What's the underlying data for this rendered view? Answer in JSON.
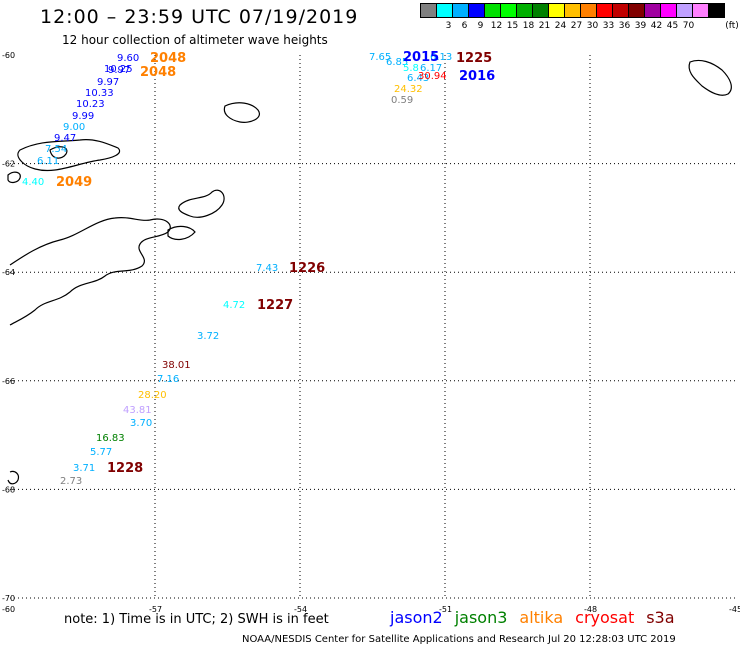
{
  "title": "12:00 – 23:59 UTC 07/19/2019",
  "subtitle": "12 hour collection of altimeter wave heights",
  "color_scale": {
    "unit": "(ft)",
    "colors": [
      "#808080",
      "#00ffff",
      "#00b0ff",
      "#0000ff",
      "#00e000",
      "#00ff00",
      "#00b000",
      "#008000",
      "#ffff00",
      "#ffbf00",
      "#ff8000",
      "#ff0000",
      "#c00000",
      "#800000",
      "#a000a0",
      "#ff00ff",
      "#c0a0ff",
      "#ff80ff",
      "#000000"
    ],
    "labels": [
      "3",
      "6",
      "9",
      "12",
      "15",
      "18",
      "21",
      "24",
      "27",
      "30",
      "33",
      "36",
      "39",
      "42",
      "45",
      "70"
    ]
  },
  "axis": {
    "lat_labels": [
      "-60",
      "-62",
      "-64",
      "-66",
      "-68",
      "-70"
    ],
    "lon_labels": [
      "-60",
      "-57",
      "-54",
      "-51",
      "-48",
      "-45"
    ]
  },
  "tracks": [
    {
      "color": "#00b0ff",
      "points": [
        {
          "lon": -55.5,
          "lat": -64.43,
          "v": "7.43",
          "c": "#00b0ff"
        },
        {
          "lon": -56.1,
          "lat": -65.09,
          "v": "4.72",
          "c": "#00ffff"
        },
        {
          "lon": -56.6,
          "lat": -65.71,
          "v": "3.72",
          "c": "#00b0ff"
        }
      ],
      "label": {
        "t": "1226",
        "c": "#800000"
      }
    },
    {
      "color": "#800000",
      "points": [],
      "label": {
        "t": "1227",
        "c": "#800000"
      }
    },
    {
      "color": "#000",
      "points": [
        {
          "lon": -56.8,
          "lat": -66.19,
          "v": "38.01",
          "c": "#800000"
        },
        {
          "lon": -57.0,
          "lat": -66.43,
          "v": "7.16",
          "c": "#00b0ff"
        },
        {
          "lon": -57.2,
          "lat": -66.72,
          "v": "28.20",
          "c": "#ffbf00"
        },
        {
          "lon": -57.4,
          "lat": -67.0,
          "v": "43.81",
          "c": "#c0a0ff"
        },
        {
          "lon": -57.6,
          "lat": -67.27,
          "v": "3.70",
          "c": "#00b0ff"
        },
        {
          "lon": -58.2,
          "lat": -67.55,
          "v": "16.83",
          "c": "#008000"
        },
        {
          "lon": -58.5,
          "lat": -67.82,
          "v": "5.77",
          "c": "#00b0ff"
        },
        {
          "lon": -58.9,
          "lat": -68.09,
          "v": "3.71",
          "c": "#00b0ff"
        },
        {
          "lon": -59.2,
          "lat": -68.23,
          "v": "2.73",
          "c": "#808080"
        }
      ],
      "label": {
        "t": "1228",
        "c": "#800000"
      }
    }
  ],
  "upper_track": [
    {
      "v": "9.60",
      "c": "#0000ff"
    },
    {
      "v": "10.25",
      "c": "#0000ff"
    },
    {
      "v": "9.97",
      "c": "#0000ff"
    },
    {
      "v": "9.97",
      "c": "#0000ff"
    },
    {
      "v": "10.33",
      "c": "#0000ff"
    },
    {
      "v": "10.23",
      "c": "#0000ff"
    },
    {
      "v": "9.99",
      "c": "#0000ff"
    },
    {
      "v": "9.00",
      "c": "#00b0ff"
    },
    {
      "v": "9.47",
      "c": "#0000ff"
    },
    {
      "v": "7.54",
      "c": "#00b0ff"
    },
    {
      "v": "6.11",
      "c": "#00b0ff"
    },
    {
      "v": "4.40",
      "c": "#00ffff"
    }
  ],
  "upper_labels": [
    {
      "t": "2048",
      "c": "#ff8000"
    },
    {
      "t": "2048",
      "c": "#ff8000"
    },
    {
      "t": "2049",
      "c": "#ff8000"
    }
  ],
  "top_right": {
    "values": [
      {
        "v": "7.65",
        "c": "#00b0ff"
      },
      {
        "v": "6.85",
        "c": "#00b0ff"
      },
      {
        "v": "5.8",
        "c": "#00ffff"
      },
      {
        "v": "6.17",
        "c": "#00b0ff"
      },
      {
        "v": "6.13",
        "c": "#00b0ff"
      },
      {
        "v": "6.43",
        "c": "#00b0ff"
      },
      {
        "v": "30.94",
        "c": "#ff0000"
      },
      {
        "v": "24.32",
        "c": "#ffbf00"
      },
      {
        "v": "0.59",
        "c": "#808080"
      }
    ],
    "labels": [
      {
        "t": "2015",
        "c": "#0000ff"
      },
      {
        "t": "1225",
        "c": "#800000"
      },
      {
        "t": "2016",
        "c": "#0000ff"
      }
    ]
  },
  "note": "note:  1) Time is in UTC; 2) SWH is in feet",
  "legend": [
    {
      "t": "jason2",
      "c": "#0000ff"
    },
    {
      "t": "jason3",
      "c": "#008000"
    },
    {
      "t": "altika",
      "c": "#ff8000"
    },
    {
      "t": "cryosat",
      "c": "#ff0000"
    },
    {
      "t": "s3a",
      "c": "#800000"
    }
  ],
  "footer": "NOAA/NESDIS Center for Satellite Applications and Research    Jul 20 12:28:03 UTC 2019"
}
